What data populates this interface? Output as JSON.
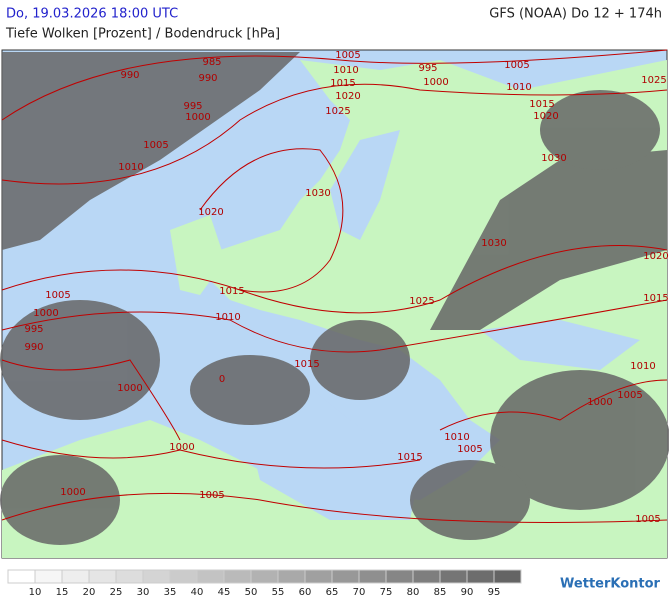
{
  "header": {
    "datetime": "Do, 19.03.2026 18:00 UTC",
    "model": "GFS (NOAA) Do 12 + 174h",
    "subtitle": "Tiefe Wolken [Prozent] / Bodendruck [hPa]"
  },
  "isobar_labels": [
    "1005",
    "985",
    "990",
    "990",
    "1010",
    "995",
    "1005",
    "1015",
    "1000",
    "1010",
    "1025",
    "995",
    "1000",
    "1020",
    "1025",
    "1015",
    "1020",
    "1005",
    "1030",
    "1010",
    "1030",
    "1020",
    "1030",
    "1020",
    "1015",
    "1005",
    "1025",
    "1015",
    "1000",
    "1010",
    "995",
    "990",
    "1015",
    "0",
    "1010",
    "1000",
    "1005",
    "1000",
    "1010",
    "1005",
    "1000",
    "1015",
    "1000",
    "1005",
    "1005"
  ],
  "legend": {
    "labels": [
      "10",
      "15",
      "20",
      "25",
      "30",
      "35",
      "40",
      "45",
      "50",
      "55",
      "60",
      "65",
      "70",
      "75",
      "80",
      "85",
      "90",
      "95"
    ]
  },
  "logo": "WetterKontor"
}
